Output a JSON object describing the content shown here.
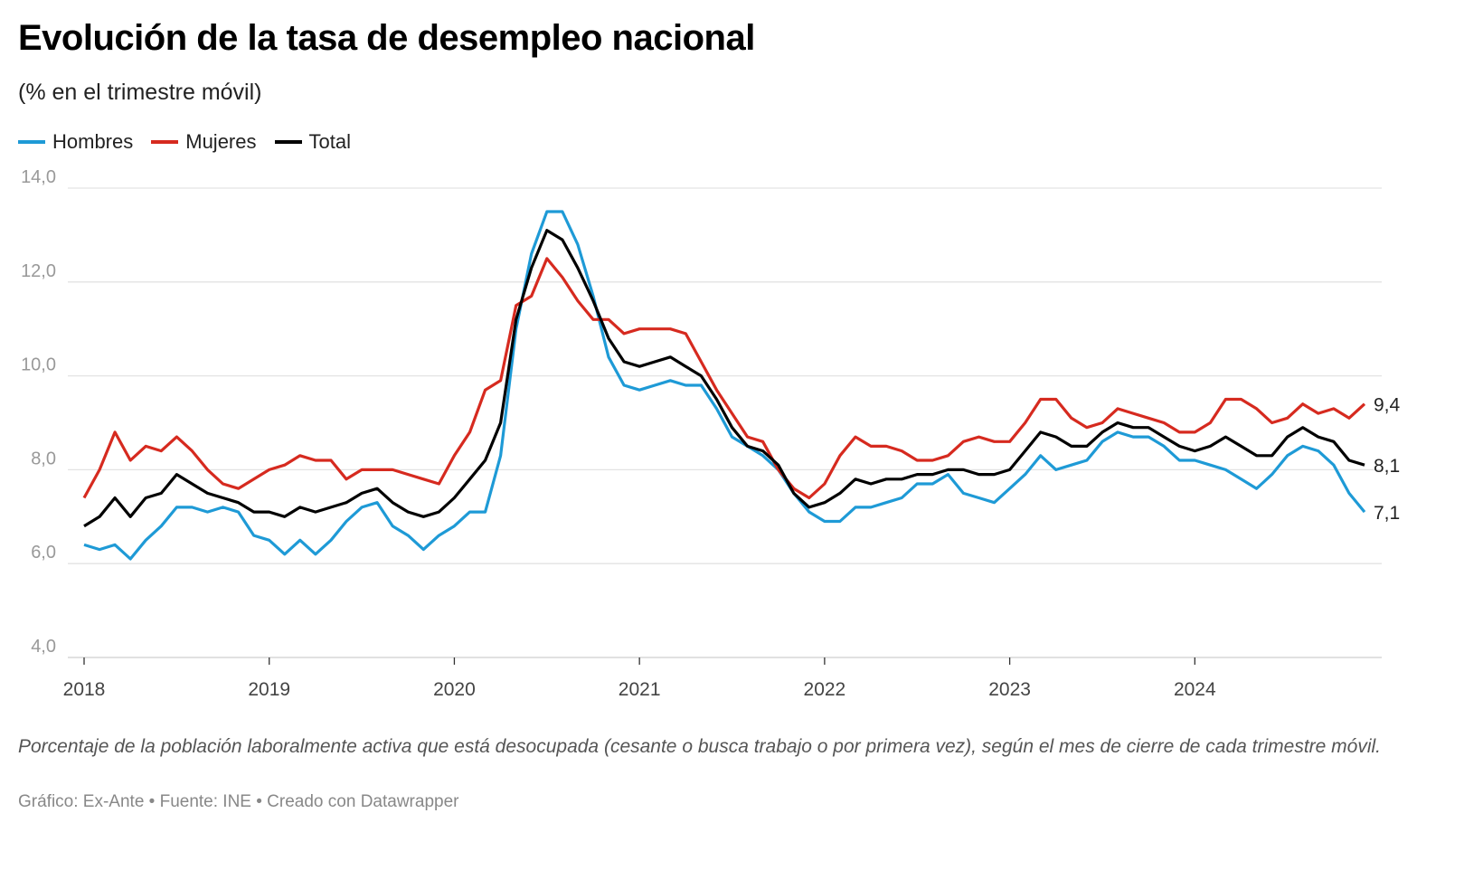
{
  "header": {
    "title": "Evolución de la tasa de desempleo nacional",
    "subtitle": "(% en el trimestre móvil)"
  },
  "footer": {
    "note": "Porcentaje de la población laboralmente activa que está desocupada (cesante o busca trabajo o por primera vez), según el mes de cierre de cada trimestre móvil.",
    "credit": "Gráfico: Ex-Ante • Fuente: INE • Creado con Datawrapper"
  },
  "chart_data": {
    "type": "line",
    "title": "Evolución de la tasa de desempleo nacional",
    "subtitle": "(% en el trimestre móvil)",
    "xlabel": "",
    "ylabel": "",
    "ylim": [
      4,
      14
    ],
    "yticks": [
      "4,0",
      "6,0",
      "8,0",
      "10,0",
      "12,0",
      "14,0"
    ],
    "ytick_values": [
      4,
      6,
      8,
      10,
      12,
      14
    ],
    "xticks": [
      "2018",
      "2019",
      "2020",
      "2021",
      "2022",
      "2023",
      "2024"
    ],
    "x_start": "2018-01",
    "x_end": "2024-12",
    "x_frequency": "monthly",
    "grid": true,
    "legend": "top-left",
    "series": [
      {
        "name": "Hombres",
        "color": "#1e9ad6",
        "end_label": "7,1",
        "values": [
          6.4,
          6.3,
          6.4,
          6.1,
          6.5,
          6.8,
          7.2,
          7.2,
          7.1,
          7.2,
          7.1,
          6.6,
          6.5,
          6.2,
          6.5,
          6.2,
          6.5,
          6.9,
          7.2,
          7.3,
          6.8,
          6.6,
          6.3,
          6.6,
          6.8,
          7.1,
          7.1,
          8.3,
          11.0,
          12.6,
          13.5,
          13.5,
          12.8,
          11.7,
          10.4,
          9.8,
          9.7,
          9.8,
          9.9,
          9.8,
          9.8,
          9.3,
          8.7,
          8.5,
          8.3,
          8.0,
          7.5,
          7.1,
          6.9,
          6.9,
          7.2,
          7.2,
          7.3,
          7.4,
          7.7,
          7.7,
          7.9,
          7.5,
          7.4,
          7.3,
          7.6,
          7.9,
          8.3,
          8.0,
          8.1,
          8.2,
          8.6,
          8.8,
          8.7,
          8.7,
          8.5,
          8.2,
          8.2,
          8.1,
          8.0,
          7.8,
          7.6,
          7.9,
          8.3,
          8.5,
          8.4,
          8.1,
          7.5,
          7.1
        ]
      },
      {
        "name": "Mujeres",
        "color": "#d62a1f",
        "end_label": "9,4",
        "values": [
          7.4,
          8.0,
          8.8,
          8.2,
          8.5,
          8.4,
          8.7,
          8.4,
          8.0,
          7.7,
          7.6,
          7.8,
          8.0,
          8.1,
          8.3,
          8.2,
          8.2,
          7.8,
          8.0,
          8.0,
          8.0,
          7.9,
          7.8,
          7.7,
          8.3,
          8.8,
          9.7,
          9.9,
          11.5,
          11.7,
          12.5,
          12.1,
          11.6,
          11.2,
          11.2,
          10.9,
          11.0,
          11.0,
          11.0,
          10.9,
          10.3,
          9.7,
          9.2,
          8.7,
          8.6,
          8.0,
          7.6,
          7.4,
          7.7,
          8.3,
          8.7,
          8.5,
          8.5,
          8.4,
          8.2,
          8.2,
          8.3,
          8.6,
          8.7,
          8.6,
          8.6,
          9.0,
          9.5,
          9.5,
          9.1,
          8.9,
          9.0,
          9.3,
          9.2,
          9.1,
          9.0,
          8.8,
          8.8,
          9.0,
          9.5,
          9.5,
          9.3,
          9.0,
          9.1,
          9.4,
          9.2,
          9.3,
          9.1,
          9.4
        ]
      },
      {
        "name": "Total",
        "color": "#000000",
        "end_label": "8,1",
        "values": [
          6.8,
          7.0,
          7.4,
          7.0,
          7.4,
          7.5,
          7.9,
          7.7,
          7.5,
          7.4,
          7.3,
          7.1,
          7.1,
          7.0,
          7.2,
          7.1,
          7.2,
          7.3,
          7.5,
          7.6,
          7.3,
          7.1,
          7.0,
          7.1,
          7.4,
          7.8,
          8.2,
          9.0,
          11.2,
          12.3,
          13.1,
          12.9,
          12.3,
          11.6,
          10.8,
          10.3,
          10.2,
          10.3,
          10.4,
          10.2,
          10.0,
          9.5,
          8.9,
          8.5,
          8.4,
          8.1,
          7.5,
          7.2,
          7.3,
          7.5,
          7.8,
          7.7,
          7.8,
          7.8,
          7.9,
          7.9,
          8.0,
          8.0,
          7.9,
          7.9,
          8.0,
          8.4,
          8.8,
          8.7,
          8.5,
          8.5,
          8.8,
          9.0,
          8.9,
          8.9,
          8.7,
          8.5,
          8.4,
          8.5,
          8.7,
          8.5,
          8.3,
          8.3,
          8.7,
          8.9,
          8.7,
          8.6,
          8.2,
          8.1
        ]
      }
    ]
  }
}
